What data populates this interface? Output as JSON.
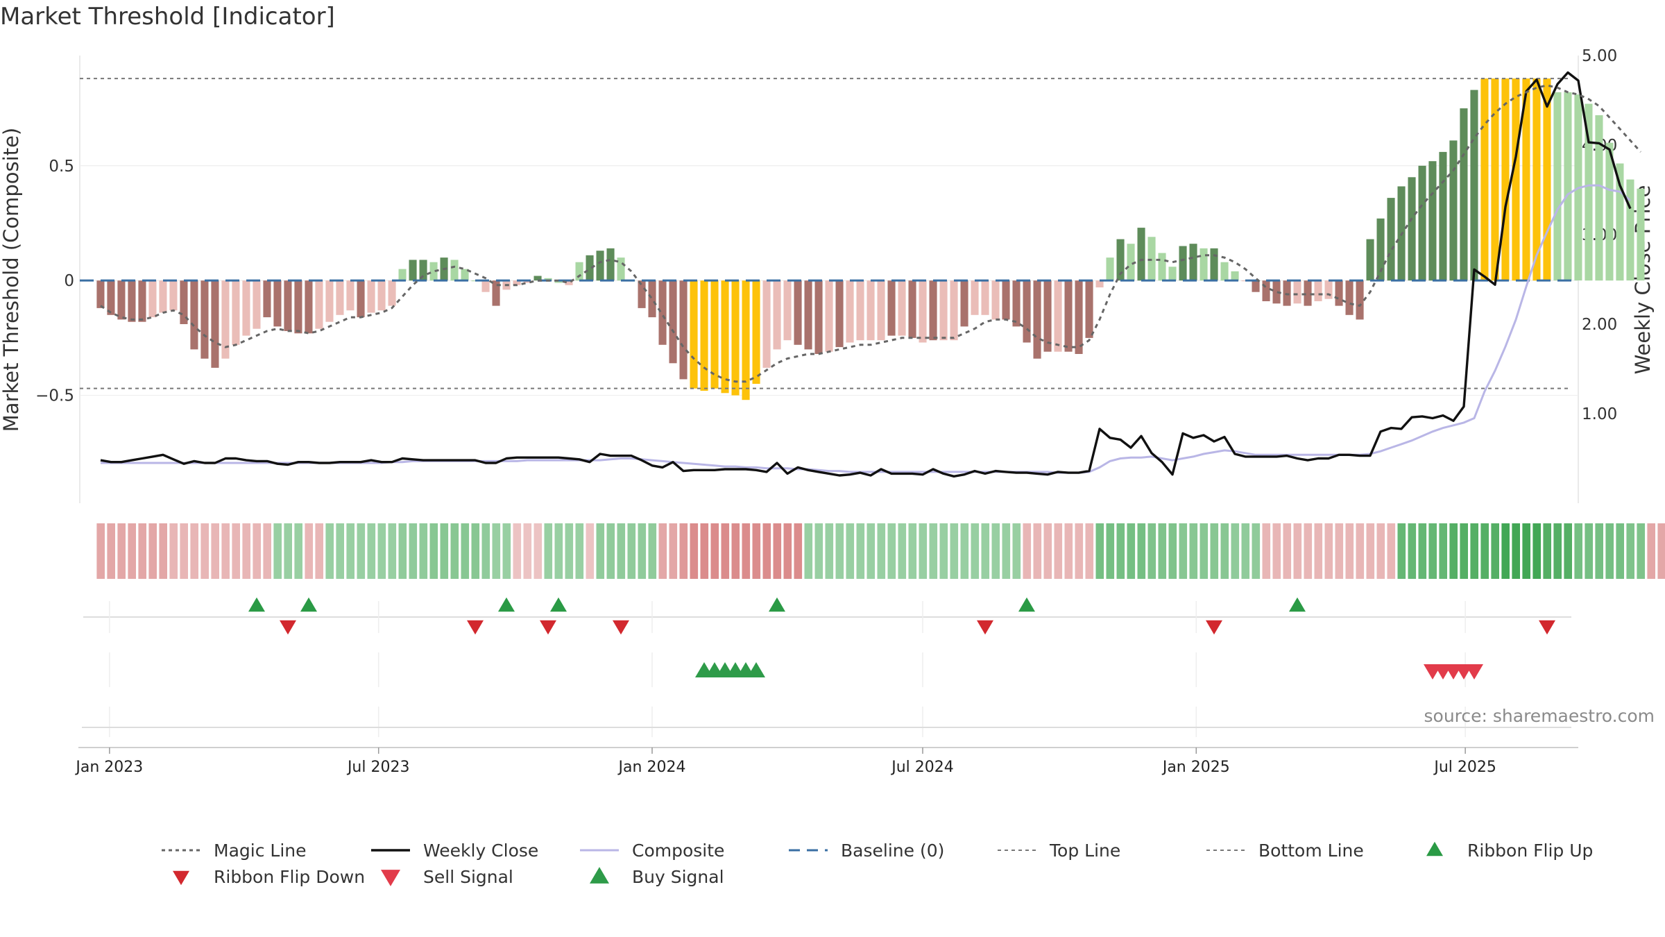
{
  "title": "Market Threshold [Indicator]",
  "source": "source: sharemaestro.com",
  "colors": {
    "pos_strong": "#5e8c5a",
    "pos_weak": "#a9d7a3",
    "neg_strong": "#a9726c",
    "neg_weak": "#eabdb8",
    "extreme": "#fdc20a",
    "magic": "#666666",
    "close": "#111111",
    "composite": "#b9b6e6",
    "baseline": "#3a6fa3",
    "threshold": "#777777",
    "flip_up": "#2a9a45",
    "flip_down": "#d2282e",
    "sell": "#e23b4a",
    "buy": "#2e9b49"
  },
  "chart_data": {
    "type": "bar",
    "start": "2022-12-26",
    "step_days": 7,
    "x_range": [
      "2022-12-12",
      "2025-09-15"
    ],
    "date_ticks": [
      "Jan 2023",
      "Jul 2023",
      "Jan 2024",
      "Jul 2024",
      "Jan 2025",
      "Jul 2025"
    ],
    "date_tick_values": [
      "2023-01-01",
      "2023-07-01",
      "2024-01-01",
      "2024-07-01",
      "2025-01-01",
      "2025-07-01"
    ],
    "left_axis": {
      "label": "Market Threshold (Composite)",
      "ticks": [
        0.5,
        0,
        -0.5
      ],
      "tick_labels": [
        "0.5",
        "0",
        "−0.5"
      ],
      "range": [
        -0.97,
        0.98
      ]
    },
    "right_axis": {
      "label": "Weekly Close Price",
      "ticks": [
        1.0,
        2.0,
        3.0,
        4.0,
        5.0
      ],
      "tick_labels": [
        "1.00",
        "2.00",
        "3.00",
        "4.00",
        "5.00"
      ],
      "range": [
        -0.0,
        5.0
      ]
    },
    "top_line": 0.88,
    "bottom_line": -0.47,
    "baseline": 0,
    "composite_hist": [
      -0.12,
      -0.15,
      -0.17,
      -0.18,
      -0.18,
      -0.16,
      -0.14,
      -0.13,
      -0.19,
      -0.3,
      -0.34,
      -0.38,
      -0.34,
      -0.28,
      -0.24,
      -0.21,
      -0.16,
      -0.2,
      -0.22,
      -0.23,
      -0.23,
      -0.21,
      -0.18,
      -0.15,
      -0.13,
      -0.16,
      -0.14,
      -0.13,
      -0.11,
      0.05,
      0.09,
      0.09,
      0.08,
      0.1,
      0.09,
      0.05,
      0.0,
      -0.05,
      -0.11,
      -0.04,
      -0.02,
      -0.01,
      0.02,
      0.01,
      -0.01,
      -0.02,
      0.08,
      0.11,
      0.13,
      0.14,
      0.1,
      0.0,
      -0.12,
      -0.16,
      -0.28,
      -0.36,
      -0.43,
      -0.47,
      -0.48,
      -0.47,
      -0.49,
      -0.5,
      -0.52,
      -0.45,
      -0.38,
      -0.3,
      -0.26,
      -0.28,
      -0.3,
      -0.32,
      -0.31,
      -0.29,
      -0.27,
      -0.26,
      -0.26,
      -0.26,
      -0.24,
      -0.24,
      -0.25,
      -0.27,
      -0.26,
      -0.26,
      -0.26,
      -0.2,
      -0.15,
      -0.15,
      -0.17,
      -0.17,
      -0.2,
      -0.27,
      -0.34,
      -0.31,
      -0.31,
      -0.31,
      -0.32,
      -0.25,
      -0.03,
      0.1,
      0.18,
      0.16,
      0.23,
      0.19,
      0.12,
      0.06,
      0.15,
      0.16,
      0.14,
      0.14,
      0.08,
      0.04,
      0.0,
      -0.05,
      -0.09,
      -0.1,
      -0.11,
      -0.1,
      -0.11,
      -0.09,
      -0.08,
      -0.11,
      -0.15,
      -0.17,
      0.18,
      0.27,
      0.36,
      0.41,
      0.45,
      0.5,
      0.52,
      0.56,
      0.61,
      0.75,
      0.83,
      0.88,
      0.88,
      0.88,
      0.88,
      0.88,
      0.88,
      0.88,
      0.82,
      0.82,
      0.81,
      0.77,
      0.72,
      0.6,
      0.51,
      0.44,
      0.4
    ],
    "histogram_bar_class": [
      "ns",
      "ns",
      "ns",
      "ns",
      "ns",
      "nw",
      "nw",
      "nw",
      "ns",
      "ns",
      "ns",
      "ns",
      "nw",
      "nw",
      "nw",
      "nw",
      "ns",
      "ns",
      "ns",
      "ns",
      "ns",
      "nw",
      "nw",
      "nw",
      "nw",
      "ns",
      "nw",
      "nw",
      "nw",
      "pw",
      "ps",
      "ps",
      "pw",
      "ps",
      "pw",
      "pw",
      "pw",
      "nw",
      "ns",
      "nw",
      "nw",
      "nw",
      "ps",
      "pw",
      "pw",
      "nw",
      "pw",
      "ps",
      "ps",
      "ps",
      "pw",
      "pw",
      "ns",
      "ns",
      "ns",
      "ns",
      "ns",
      "ex",
      "ex",
      "ex",
      "ex",
      "ex",
      "ex",
      "ex",
      "nw",
      "nw",
      "nw",
      "ns",
      "ns",
      "ns",
      "nw",
      "ns",
      "nw",
      "nw",
      "nw",
      "nw",
      "ns",
      "nw",
      "ns",
      "nw",
      "ns",
      "nw",
      "nw",
      "ns",
      "nw",
      "nw",
      "nw",
      "ns",
      "ns",
      "ns",
      "ns",
      "ns",
      "nw",
      "ns",
      "ns",
      "ns",
      "nw",
      "pw",
      "ps",
      "pw",
      "ps",
      "pw",
      "pw",
      "pw",
      "ps",
      "ps",
      "pw",
      "ps",
      "pw",
      "pw",
      "nw",
      "ns",
      "ns",
      "ns",
      "ns",
      "nw",
      "ns",
      "nw",
      "nw",
      "ns",
      "ns",
      "ns",
      "ps",
      "ps",
      "ps",
      "ps",
      "ps",
      "ps",
      "ps",
      "ps",
      "ps",
      "ps",
      "ps",
      "ex",
      "ex",
      "ex",
      "ex",
      "ex",
      "ex",
      "ex",
      "pw",
      "pw",
      "pw",
      "pw",
      "pw",
      "pw",
      "pw",
      "pw",
      "pw"
    ],
    "magic_line": [
      -0.11,
      -0.14,
      -0.16,
      -0.17,
      -0.17,
      -0.16,
      -0.14,
      -0.13,
      -0.15,
      -0.2,
      -0.24,
      -0.27,
      -0.29,
      -0.28,
      -0.26,
      -0.24,
      -0.22,
      -0.21,
      -0.22,
      -0.22,
      -0.23,
      -0.22,
      -0.2,
      -0.18,
      -0.16,
      -0.16,
      -0.15,
      -0.14,
      -0.12,
      -0.07,
      -0.02,
      0.02,
      0.04,
      0.05,
      0.06,
      0.05,
      0.03,
      0.01,
      -0.02,
      -0.02,
      -0.02,
      -0.01,
      0.0,
      0.0,
      0.0,
      -0.01,
      0.02,
      0.05,
      0.08,
      0.09,
      0.08,
      0.04,
      -0.02,
      -0.08,
      -0.15,
      -0.22,
      -0.29,
      -0.34,
      -0.38,
      -0.41,
      -0.43,
      -0.44,
      -0.44,
      -0.42,
      -0.39,
      -0.36,
      -0.34,
      -0.33,
      -0.32,
      -0.32,
      -0.31,
      -0.3,
      -0.29,
      -0.28,
      -0.28,
      -0.27,
      -0.26,
      -0.25,
      -0.25,
      -0.25,
      -0.25,
      -0.25,
      -0.25,
      -0.23,
      -0.21,
      -0.18,
      -0.17,
      -0.17,
      -0.18,
      -0.21,
      -0.25,
      -0.27,
      -0.28,
      -0.29,
      -0.29,
      -0.26,
      -0.17,
      -0.06,
      0.03,
      0.07,
      0.09,
      0.09,
      0.09,
      0.08,
      0.09,
      0.1,
      0.11,
      0.11,
      0.1,
      0.08,
      0.05,
      0.01,
      -0.03,
      -0.05,
      -0.06,
      -0.06,
      -0.06,
      -0.06,
      -0.06,
      -0.08,
      -0.1,
      -0.11,
      -0.05,
      0.04,
      0.13,
      0.2,
      0.27,
      0.33,
      0.38,
      0.43,
      0.48,
      0.55,
      0.62,
      0.68,
      0.73,
      0.77,
      0.8,
      0.82,
      0.84,
      0.85,
      0.84,
      0.82,
      0.81,
      0.79,
      0.76,
      0.71,
      0.66,
      0.61,
      0.56
    ],
    "weekly_close": [
      0.48,
      0.46,
      0.46,
      0.48,
      0.5,
      0.52,
      0.54,
      0.49,
      0.44,
      0.47,
      0.45,
      0.45,
      0.5,
      0.5,
      0.48,
      0.47,
      0.47,
      0.44,
      0.43,
      0.46,
      0.46,
      0.45,
      0.45,
      0.46,
      0.46,
      0.46,
      0.48,
      0.46,
      0.46,
      0.5,
      0.49,
      0.48,
      0.48,
      0.48,
      0.48,
      0.48,
      0.48,
      0.45,
      0.45,
      0.5,
      0.51,
      0.51,
      0.51,
      0.51,
      0.51,
      0.5,
      0.49,
      0.46,
      0.55,
      0.53,
      0.53,
      0.53,
      0.48,
      0.42,
      0.4,
      0.46,
      0.36,
      0.37,
      0.37,
      0.37,
      0.38,
      0.38,
      0.38,
      0.37,
      0.35,
      0.45,
      0.33,
      0.4,
      0.37,
      0.35,
      0.33,
      0.31,
      0.32,
      0.34,
      0.31,
      0.38,
      0.33,
      0.33,
      0.33,
      0.32,
      0.38,
      0.33,
      0.3,
      0.32,
      0.36,
      0.33,
      0.36,
      0.35,
      0.34,
      0.34,
      0.33,
      0.32,
      0.35,
      0.34,
      0.34,
      0.36,
      0.83,
      0.73,
      0.71,
      0.62,
      0.75,
      0.56,
      0.46,
      0.32,
      0.78,
      0.73,
      0.76,
      0.69,
      0.74,
      0.55,
      0.52,
      0.52,
      0.52,
      0.52,
      0.53,
      0.5,
      0.48,
      0.5,
      0.5,
      0.54,
      0.54,
      0.53,
      0.53,
      0.8,
      0.84,
      0.83,
      0.96,
      0.97,
      0.95,
      0.98,
      0.92,
      1.08,
      2.61,
      2.53,
      2.44,
      3.31,
      3.87,
      4.6,
      4.73,
      4.43,
      4.68,
      4.81,
      4.72,
      4.03,
      4.02,
      3.95,
      3.55,
      3.29
    ],
    "composite_line": [
      0.45,
      0.45,
      0.45,
      0.45,
      0.45,
      0.45,
      0.45,
      0.45,
      0.45,
      0.45,
      0.45,
      0.45,
      0.45,
      0.45,
      0.45,
      0.45,
      0.45,
      0.45,
      0.45,
      0.45,
      0.45,
      0.45,
      0.45,
      0.45,
      0.45,
      0.45,
      0.45,
      0.45,
      0.46,
      0.46,
      0.47,
      0.47,
      0.47,
      0.47,
      0.47,
      0.47,
      0.47,
      0.47,
      0.47,
      0.47,
      0.47,
      0.48,
      0.48,
      0.48,
      0.48,
      0.48,
      0.48,
      0.48,
      0.48,
      0.49,
      0.5,
      0.5,
      0.49,
      0.48,
      0.47,
      0.46,
      0.45,
      0.44,
      0.43,
      0.42,
      0.41,
      0.41,
      0.4,
      0.4,
      0.39,
      0.39,
      0.39,
      0.38,
      0.38,
      0.37,
      0.36,
      0.36,
      0.35,
      0.35,
      0.35,
      0.35,
      0.35,
      0.35,
      0.35,
      0.35,
      0.35,
      0.35,
      0.35,
      0.35,
      0.35,
      0.35,
      0.35,
      0.35,
      0.35,
      0.35,
      0.35,
      0.35,
      0.34,
      0.34,
      0.34,
      0.35,
      0.4,
      0.47,
      0.5,
      0.51,
      0.51,
      0.52,
      0.5,
      0.48,
      0.5,
      0.52,
      0.55,
      0.57,
      0.59,
      0.58,
      0.56,
      0.54,
      0.54,
      0.54,
      0.54,
      0.54,
      0.54,
      0.54,
      0.54,
      0.54,
      0.54,
      0.54,
      0.55,
      0.58,
      0.62,
      0.66,
      0.7,
      0.75,
      0.8,
      0.84,
      0.87,
      0.9,
      0.95,
      1.25,
      1.48,
      1.75,
      2.05,
      2.42,
      2.77,
      3.03,
      3.28,
      3.45,
      3.52,
      3.55,
      3.55,
      3.5,
      3.48,
      3.38
    ],
    "ribbon_strength": [
      -0.4,
      -0.4,
      -0.4,
      -0.4,
      -0.4,
      -0.4,
      -0.4,
      -0.3,
      -0.3,
      -0.3,
      -0.3,
      -0.3,
      -0.3,
      -0.3,
      -0.3,
      -0.3,
      -0.3,
      0.3,
      0.3,
      0.3,
      -0.3,
      -0.3,
      0.3,
      0.3,
      0.3,
      0.3,
      0.3,
      0.3,
      0.3,
      0.35,
      0.35,
      0.35,
      0.4,
      0.4,
      0.4,
      0.4,
      0.4,
      0.35,
      0.3,
      0.3,
      -0.2,
      -0.2,
      -0.2,
      0.3,
      0.3,
      0.3,
      0.3,
      -0.2,
      0.35,
      0.35,
      0.35,
      0.35,
      0.35,
      0.35,
      -0.4,
      -0.4,
      -0.5,
      -0.6,
      -0.6,
      -0.6,
      -0.6,
      -0.6,
      -0.6,
      -0.6,
      -0.6,
      -0.6,
      -0.6,
      -0.6,
      0.3,
      0.3,
      0.3,
      0.3,
      0.3,
      0.3,
      0.3,
      0.3,
      0.3,
      0.3,
      0.3,
      0.3,
      0.3,
      0.3,
      0.3,
      0.3,
      0.3,
      0.3,
      0.3,
      0.3,
      0.3,
      -0.3,
      -0.3,
      -0.3,
      -0.3,
      -0.3,
      -0.3,
      -0.3,
      0.5,
      0.5,
      0.5,
      0.5,
      0.5,
      0.45,
      0.45,
      0.45,
      0.4,
      0.4,
      0.4,
      0.4,
      0.4,
      0.35,
      0.35,
      0.35,
      -0.3,
      -0.3,
      -0.3,
      -0.3,
      -0.3,
      -0.3,
      -0.3,
      -0.3,
      -0.3,
      -0.3,
      -0.3,
      -0.3,
      -0.3,
      0.6,
      0.6,
      0.6,
      0.6,
      0.6,
      0.7,
      0.7,
      0.7,
      0.7,
      0.7,
      0.8,
      0.8,
      0.8,
      0.8,
      0.7,
      0.7,
      0.7,
      0.5,
      0.5,
      0.5,
      0.5,
      0.5,
      0.45,
      0.45,
      -0.4,
      -0.4,
      -0.4
    ],
    "ribbon_flip_up": [
      "2023-04-10",
      "2023-05-15",
      "2023-09-25",
      "2023-10-30",
      "2024-03-25",
      "2024-09-09",
      "2025-03-10"
    ],
    "ribbon_flip_down": [
      "2023-05-01",
      "2023-09-04",
      "2023-10-23",
      "2023-12-11",
      "2024-08-12",
      "2025-01-13",
      "2025-08-25"
    ],
    "buy_signal": [
      "2024-02-05",
      "2024-02-12",
      "2024-02-19",
      "2024-02-26",
      "2024-03-04",
      "2024-03-11"
    ],
    "sell_signal": [
      "2025-06-09",
      "2025-06-16",
      "2025-06-23",
      "2025-06-30",
      "2025-07-07"
    ]
  },
  "legend": [
    {
      "label": "Magic Line",
      "icon": "dotted-line"
    },
    {
      "label": "Weekly Close",
      "icon": "solid-line"
    },
    {
      "label": "Composite",
      "icon": "solid-line-lavender"
    },
    {
      "label": "Baseline (0)",
      "icon": "dashed-line"
    },
    {
      "label": "Top Line",
      "icon": "dotted-line-thin"
    },
    {
      "label": "Bottom Line",
      "icon": "dotted-line-thin"
    },
    {
      "label": "Ribbon Flip Up",
      "icon": "triangle-up-green"
    },
    {
      "label": "Ribbon Flip Down",
      "icon": "triangle-down-red"
    },
    {
      "label": "Sell Signal",
      "icon": "triangle-down-pinkred"
    },
    {
      "label": "Buy Signal",
      "icon": "triangle-up-green-large"
    }
  ]
}
